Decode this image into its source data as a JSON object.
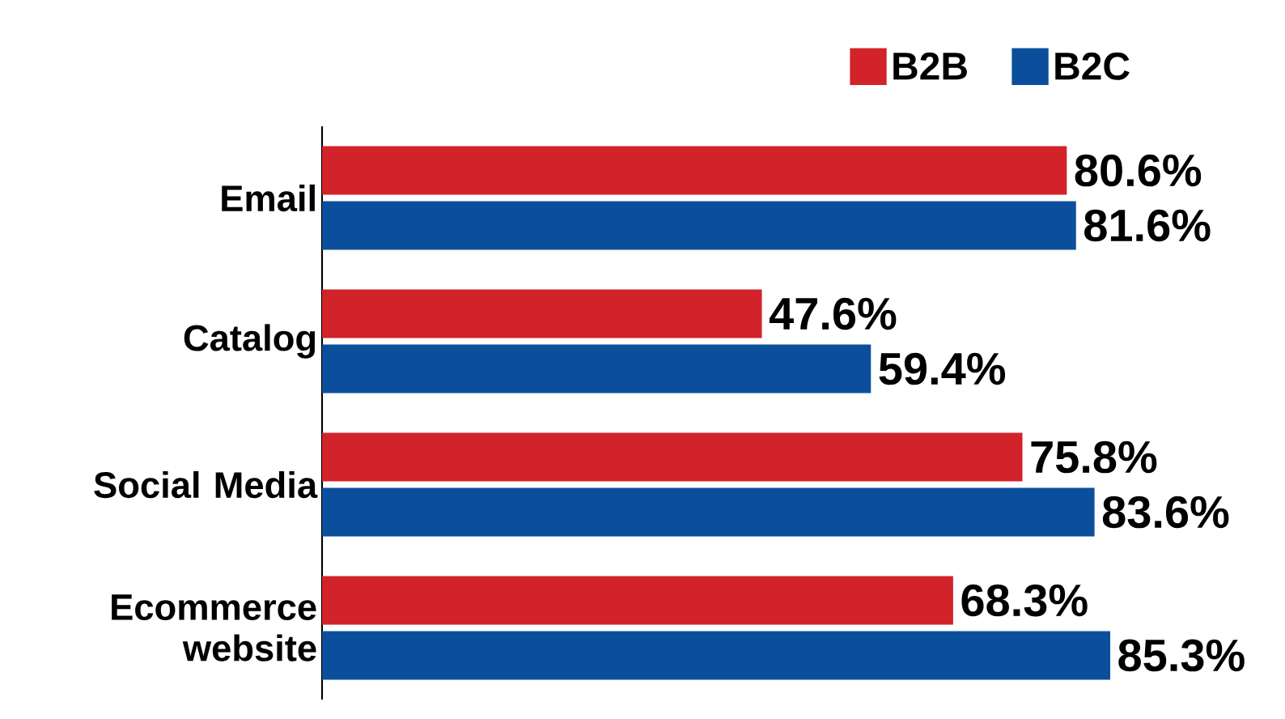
{
  "chart_data": {
    "type": "bar",
    "orientation": "horizontal",
    "categories": [
      "Email",
      "Catalog",
      "Social Media",
      "Ecommerce website"
    ],
    "series": [
      {
        "name": "B2B",
        "color": "#d2232a",
        "values": [
          80.6,
          47.6,
          75.8,
          68.3
        ],
        "value_labels": [
          "80.6%",
          "47.6%",
          "75.8%",
          "68.3%"
        ]
      },
      {
        "name": "B2C",
        "color": "#0b4f9c",
        "values": [
          81.6,
          59.4,
          83.6,
          85.3
        ],
        "value_labels": [
          "81.6%",
          "59.4%",
          "83.6%",
          "85.3%"
        ]
      }
    ],
    "legend": "top right"
  }
}
